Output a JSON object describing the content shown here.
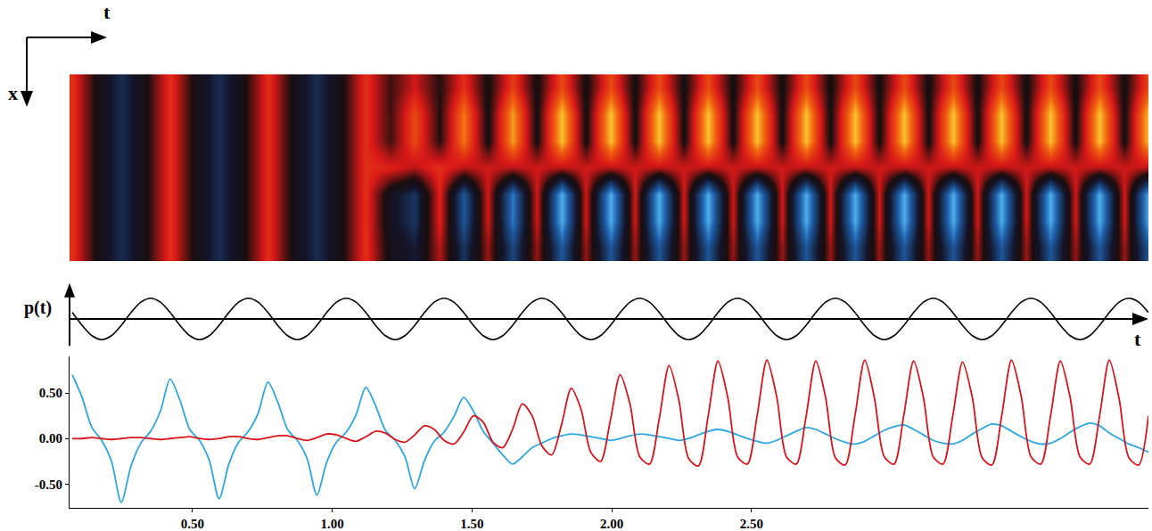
{
  "chart_data": [
    {
      "type": "heatmap",
      "xlabel": "t",
      "ylabel": "x",
      "tick_labels": false,
      "xlim": [
        0.06,
        3.92
      ],
      "ylim": [
        -0.5,
        6.5
      ],
      "zlim": [
        -1,
        1
      ],
      "x": [
        0.07,
        0.1575,
        0.245,
        0.3325,
        0.42,
        0.5075,
        0.595,
        0.6825,
        0.77,
        0.8575,
        0.945,
        1.0325,
        1.12,
        1.2075,
        1.295,
        1.3825,
        1.47,
        1.5575,
        1.645,
        1.7325,
        1.82,
        1.9075,
        1.995,
        2.0825,
        2.17,
        2.2575,
        2.345,
        2.4325,
        2.52,
        2.6075,
        2.695,
        2.7825,
        2.87,
        2.9575,
        3.045,
        3.1325,
        3.22,
        3.3075,
        3.395,
        3.4825,
        3.57,
        3.6575,
        3.745,
        3.8325,
        3.92
      ],
      "y": [
        0,
        1,
        2,
        3,
        4,
        5,
        6
      ],
      "z": [
        [
          0.45,
          0,
          -0.3,
          0,
          0.45,
          0,
          -0.3,
          0,
          0.45,
          0,
          -0.3,
          0,
          0.45,
          -0.05,
          -0.2,
          0.3,
          -0.35,
          0.25,
          -0.45,
          0.25,
          -0.55,
          0.25,
          -0.55,
          0.25,
          -0.55,
          0.25,
          -0.55,
          0.25,
          -0.55,
          0.25,
          -0.55,
          0.25,
          -0.55,
          0.25,
          -0.55,
          0.25,
          -0.55,
          0.25,
          -0.55,
          0.25,
          -0.55,
          0.25,
          -0.55,
          0.25,
          -0.55
        ],
        [
          0.45,
          0,
          -0.3,
          0,
          0.45,
          0,
          -0.3,
          0,
          0.45,
          0,
          -0.3,
          0,
          0.45,
          -0.1,
          -0.35,
          0.4,
          -0.55,
          0.35,
          -0.7,
          0.35,
          -0.9,
          0.35,
          -0.9,
          0.35,
          -0.9,
          0.35,
          -0.9,
          0.35,
          -0.9,
          0.35,
          -0.9,
          0.35,
          -0.9,
          0.35,
          -0.9,
          0.35,
          -0.9,
          0.35,
          -0.9,
          0.35,
          -0.9,
          0.35,
          -0.9,
          0.35,
          -0.9
        ],
        [
          0.45,
          0,
          -0.3,
          0,
          0.45,
          0,
          -0.3,
          0,
          0.45,
          0,
          -0.3,
          0,
          0.45,
          -0.1,
          -0.35,
          0.4,
          -0.55,
          0.35,
          -0.7,
          0.35,
          -0.9,
          0.35,
          -0.9,
          0.35,
          -0.9,
          0.35,
          -0.9,
          0.35,
          -0.9,
          0.35,
          -0.9,
          0.35,
          -0.9,
          0.35,
          -0.9,
          0.35,
          -0.9,
          0.35,
          -0.9,
          0.35,
          -0.9,
          0.35,
          -0.9,
          0.35,
          -0.9
        ],
        [
          0.45,
          0,
          -0.3,
          0,
          0.45,
          0,
          -0.3,
          0,
          0.45,
          0,
          -0.3,
          0,
          0.45,
          0.4,
          0.3,
          0.45,
          0.3,
          0.35,
          0.3,
          0.35,
          0.3,
          0.35,
          0.3,
          0.35,
          0.3,
          0.35,
          0.3,
          0.35,
          0.3,
          0.35,
          0.3,
          0.35,
          0.3,
          0.35,
          0.3,
          0.35,
          0.3,
          0.35,
          0.3,
          0.35,
          0.3,
          0.35,
          0.3,
          0.35,
          0.3
        ],
        [
          0.45,
          0,
          -0.3,
          0,
          0.45,
          0,
          -0.3,
          0,
          0.45,
          0,
          -0.3,
          0,
          0.45,
          0.1,
          0.55,
          0.05,
          0.7,
          0,
          0.8,
          0,
          0.9,
          0,
          0.9,
          0,
          0.9,
          0,
          0.9,
          0,
          0.9,
          0,
          0.9,
          0,
          0.9,
          0,
          0.9,
          0,
          0.9,
          0,
          0.9,
          0,
          0.9,
          0,
          0.9,
          0,
          0.9
        ],
        [
          0.45,
          0,
          -0.3,
          0,
          0.45,
          0,
          -0.3,
          0,
          0.45,
          0,
          -0.3,
          0,
          0.45,
          0.1,
          0.55,
          0.05,
          0.7,
          0,
          0.8,
          0,
          0.9,
          0,
          0.9,
          0,
          0.9,
          0,
          0.9,
          0,
          0.9,
          0,
          0.9,
          0,
          0.9,
          0,
          0.9,
          0,
          0.9,
          0,
          0.9,
          0,
          0.9,
          0,
          0.9,
          0,
          0.9
        ],
        [
          0.45,
          0,
          -0.3,
          0,
          0.45,
          0,
          -0.3,
          0,
          0.45,
          0,
          -0.3,
          0,
          0.45,
          0.1,
          0.35,
          0.05,
          0.45,
          0,
          0.5,
          0,
          0.55,
          0,
          0.55,
          0,
          0.55,
          0,
          0.55,
          0,
          0.55,
          0,
          0.55,
          0,
          0.55,
          0,
          0.55,
          0,
          0.55,
          0,
          0.55,
          0,
          0.55,
          0,
          0.55,
          0,
          0.55
        ]
      ]
    },
    {
      "type": "line",
      "xlabel": "t",
      "ylabel": "p(t)",
      "tick_labels": false,
      "xlim": [
        0.06,
        3.92
      ],
      "ylim": [
        -1.3,
        1.3
      ],
      "x": [
        0.07,
        0.105,
        0.14,
        0.175,
        0.21,
        0.245,
        0.28,
        0.315,
        0.35,
        0.385,
        0.42,
        0.455,
        0.49,
        0.525,
        0.56,
        0.595,
        0.63,
        0.665,
        0.7,
        0.735,
        0.77,
        0.805,
        0.84,
        0.875,
        0.91,
        0.945,
        0.98,
        1.015,
        1.05,
        1.085,
        1.12,
        1.155,
        1.19,
        1.225,
        1.26,
        1.295,
        1.33,
        1.365,
        1.4,
        1.435,
        1.47,
        1.505,
        1.54,
        1.575,
        1.61,
        1.645,
        1.68,
        1.715,
        1.75,
        1.785,
        1.82,
        1.855,
        1.89,
        1.925,
        1.96,
        1.995,
        2.03,
        2.065,
        2.1,
        2.135,
        2.17,
        2.205,
        2.24,
        2.275,
        2.31,
        2.345,
        2.38,
        2.415,
        2.45,
        2.485,
        2.52,
        2.555,
        2.59,
        2.625,
        2.66,
        2.695,
        2.73,
        2.765,
        2.8,
        2.835,
        2.87,
        2.905,
        2.94,
        2.975,
        3.01,
        3.045,
        3.08,
        3.115,
        3.15,
        3.185,
        3.22,
        3.255,
        3.29,
        3.325,
        3.36,
        3.395,
        3.43,
        3.465,
        3.5,
        3.535,
        3.57,
        3.605,
        3.64,
        3.675,
        3.71,
        3.745,
        3.78,
        3.815,
        3.85,
        3.885,
        3.92
      ],
      "series": [
        {
          "color": "#000000",
          "values": [
            0.31,
            -0.31,
            -0.81,
            -1,
            -0.81,
            -0.31,
            0.31,
            0.81,
            1,
            0.81,
            0.31,
            -0.31,
            -0.81,
            -1,
            -0.81,
            -0.31,
            0.31,
            0.81,
            1,
            0.81,
            0.31,
            -0.31,
            -0.81,
            -1,
            -0.81,
            -0.31,
            0.31,
            0.81,
            1,
            0.81,
            0.31,
            -0.31,
            -0.81,
            -1,
            -0.81,
            -0.31,
            0.31,
            0.81,
            1,
            0.81,
            0.31,
            -0.31,
            -0.81,
            -1,
            -0.81,
            -0.31,
            0.31,
            0.81,
            1,
            0.81,
            0.31,
            -0.31,
            -0.81,
            -1,
            -0.81,
            -0.31,
            0.31,
            0.81,
            1,
            0.81,
            0.31,
            -0.31,
            -0.81,
            -1,
            -0.81,
            -0.31,
            0.31,
            0.81,
            1,
            0.81,
            0.31,
            -0.31,
            -0.81,
            -1,
            -0.81,
            -0.31,
            0.31,
            0.81,
            1,
            0.81,
            0.31,
            -0.31,
            -0.81,
            -1,
            -0.81,
            -0.31,
            0.31,
            0.81,
            1,
            0.81,
            0.31,
            -0.31,
            -0.81,
            -1,
            -0.81,
            -0.31,
            0.31,
            0.81,
            1,
            0.81,
            0.31,
            -0.31,
            -0.81,
            -1,
            -0.81,
            -0.31,
            0.31,
            0.81,
            1,
            0.81,
            0.31
          ]
        }
      ]
    },
    {
      "type": "line",
      "xlim": [
        0.06,
        3.92
      ],
      "ylim": [
        -0.76,
        0.9
      ],
      "xticks": [
        {
          "value": 0.5,
          "label": "0.50"
        },
        {
          "value": 1,
          "label": "1.00"
        },
        {
          "value": 1.5,
          "label": "1.50"
        },
        {
          "value": 2,
          "label": "2.00"
        },
        {
          "value": 2.5,
          "label": "2.50"
        }
      ],
      "yticks": [
        {
          "value": -0.5,
          "label": "-0.50"
        },
        {
          "value": 0,
          "label": "0.00"
        },
        {
          "value": 0.5,
          "label": "0.50"
        }
      ],
      "x": [
        0.07,
        0.105,
        0.14,
        0.175,
        0.21,
        0.245,
        0.28,
        0.315,
        0.35,
        0.385,
        0.42,
        0.455,
        0.49,
        0.525,
        0.56,
        0.595,
        0.63,
        0.665,
        0.7,
        0.735,
        0.77,
        0.805,
        0.84,
        0.875,
        0.91,
        0.945,
        0.98,
        1.015,
        1.05,
        1.085,
        1.12,
        1.155,
        1.19,
        1.225,
        1.26,
        1.295,
        1.33,
        1.365,
        1.4,
        1.435,
        1.47,
        1.505,
        1.54,
        1.575,
        1.61,
        1.645,
        1.68,
        1.715,
        1.75,
        1.785,
        1.82,
        1.855,
        1.89,
        1.925,
        1.96,
        1.995,
        2.03,
        2.065,
        2.1,
        2.135,
        2.17,
        2.205,
        2.24,
        2.275,
        2.31,
        2.345,
        2.38,
        2.415,
        2.45,
        2.485,
        2.52,
        2.555,
        2.59,
        2.625,
        2.66,
        2.695,
        2.73,
        2.765,
        2.8,
        2.835,
        2.87,
        2.905,
        2.94,
        2.975,
        3.01,
        3.045,
        3.08,
        3.115,
        3.15,
        3.185,
        3.22,
        3.255,
        3.29,
        3.325,
        3.36,
        3.395,
        3.43,
        3.465,
        3.5,
        3.535,
        3.57,
        3.605,
        3.64,
        3.675,
        3.71,
        3.745,
        3.78,
        3.815,
        3.85,
        3.885,
        3.92
      ],
      "series": [
        {
          "color": "#2ba6de",
          "values": [
            0.7,
            0.45,
            0.12,
            -0.02,
            -0.25,
            -0.7,
            -0.3,
            -0.05,
            0.08,
            0.3,
            0.65,
            0.42,
            0.1,
            -0.02,
            -0.24,
            -0.66,
            -0.28,
            -0.04,
            0.08,
            0.28,
            0.62,
            0.4,
            0.1,
            -0.02,
            -0.22,
            -0.62,
            -0.26,
            -0.04,
            0.07,
            0.26,
            0.56,
            0.36,
            0.09,
            -0.02,
            -0.2,
            -0.55,
            -0.24,
            -0.03,
            0.07,
            0.24,
            0.45,
            0.3,
            0.08,
            -0.05,
            -0.18,
            -0.28,
            -0.2,
            -0.1,
            -0.05,
            0.0,
            0.03,
            0.05,
            0.04,
            0.02,
            0.0,
            -0.02,
            0.0,
            0.03,
            0.05,
            0.04,
            0.02,
            0.0,
            -0.02,
            0.0,
            0.04,
            0.08,
            0.1,
            0.08,
            0.04,
            0.0,
            -0.03,
            -0.05,
            -0.02,
            0.03,
            0.08,
            0.12,
            0.1,
            0.05,
            0.0,
            -0.04,
            -0.06,
            -0.03,
            0.03,
            0.09,
            0.13,
            0.15,
            0.1,
            0.04,
            -0.02,
            -0.05,
            -0.06,
            -0.02,
            0.05,
            0.11,
            0.16,
            0.14,
            0.08,
            0.02,
            -0.03,
            -0.06,
            -0.05,
            0.0,
            0.07,
            0.13,
            0.17,
            0.14,
            0.06,
            0.0,
            -0.06,
            -0.1,
            -0.15
          ]
        },
        {
          "color": "#d8141c",
          "values": [
            0.0,
            0.0,
            0.01,
            0.0,
            -0.01,
            0.0,
            0.01,
            0.01,
            0.0,
            -0.01,
            0.0,
            0.01,
            0.02,
            0.0,
            -0.01,
            0.0,
            0.02,
            0.02,
            0.0,
            -0.01,
            0.01,
            0.03,
            0.03,
            0.0,
            -0.02,
            0.01,
            0.05,
            0.04,
            0.0,
            -0.03,
            0.02,
            0.08,
            0.06,
            -0.01,
            -0.04,
            0.04,
            0.14,
            0.1,
            -0.02,
            -0.06,
            0.07,
            0.25,
            0.18,
            -0.04,
            -0.1,
            0.1,
            0.38,
            0.25,
            -0.08,
            -0.18,
            0.15,
            0.55,
            0.32,
            -0.15,
            -0.25,
            0.2,
            0.7,
            0.38,
            -0.2,
            -0.28,
            0.22,
            0.8,
            0.42,
            -0.22,
            -0.3,
            0.25,
            0.85,
            0.45,
            -0.2,
            -0.28,
            0.25,
            0.86,
            0.46,
            -0.2,
            -0.28,
            0.24,
            0.85,
            0.45,
            -0.21,
            -0.29,
            0.25,
            0.86,
            0.44,
            -0.2,
            -0.28,
            0.26,
            0.85,
            0.45,
            -0.2,
            -0.28,
            0.25,
            0.84,
            0.45,
            -0.21,
            -0.29,
            0.25,
            0.86,
            0.46,
            -0.2,
            -0.28,
            0.25,
            0.85,
            0.45,
            -0.2,
            -0.28,
            0.24,
            0.86,
            0.44,
            -0.21,
            -0.29,
            0.25
          ]
        }
      ]
    }
  ]
}
